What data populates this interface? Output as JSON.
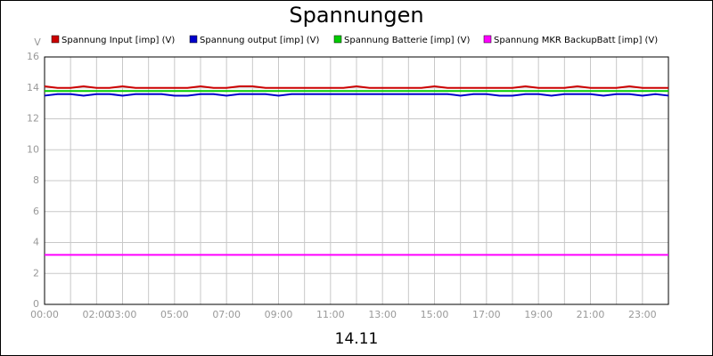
{
  "chart_data": {
    "type": "line",
    "title": "Spannungen",
    "ylabel": "V",
    "xlabel": "14.11",
    "x": [
      0,
      0.5,
      1,
      1.5,
      2,
      2.5,
      3,
      3.5,
      4,
      4.5,
      5,
      5.5,
      6,
      6.5,
      7,
      7.5,
      8,
      8.5,
      9,
      9.5,
      10,
      10.5,
      11,
      11.5,
      12,
      12.5,
      13,
      13.5,
      14,
      14.5,
      15,
      15.5,
      16,
      16.5,
      17,
      17.5,
      18,
      18.5,
      19,
      19.5,
      20,
      20.5,
      21,
      21.5,
      22,
      22.5,
      23,
      23.5,
      24
    ],
    "series": [
      {
        "name": "Spannung Input [imp] (V)",
        "color": "#cc0000",
        "values": [
          14.1,
          14.0,
          14.0,
          14.1,
          14.0,
          14.0,
          14.1,
          14.0,
          14.0,
          14.0,
          14.0,
          14.0,
          14.1,
          14.0,
          14.0,
          14.1,
          14.1,
          14.0,
          14.0,
          14.0,
          14.0,
          14.0,
          14.0,
          14.0,
          14.1,
          14.0,
          14.0,
          14.0,
          14.0,
          14.0,
          14.1,
          14.0,
          14.0,
          14.0,
          14.0,
          14.0,
          14.0,
          14.1,
          14.0,
          14.0,
          14.0,
          14.1,
          14.0,
          14.0,
          14.0,
          14.1,
          14.0,
          14.0,
          14.0
        ]
      },
      {
        "name": "Spannung output [imp] (V)",
        "color": "#0000cc",
        "values": [
          13.5,
          13.6,
          13.6,
          13.5,
          13.6,
          13.6,
          13.5,
          13.6,
          13.6,
          13.6,
          13.5,
          13.5,
          13.6,
          13.6,
          13.5,
          13.6,
          13.6,
          13.6,
          13.5,
          13.6,
          13.6,
          13.6,
          13.6,
          13.6,
          13.6,
          13.6,
          13.6,
          13.6,
          13.6,
          13.6,
          13.6,
          13.6,
          13.5,
          13.6,
          13.6,
          13.5,
          13.5,
          13.6,
          13.6,
          13.5,
          13.6,
          13.6,
          13.6,
          13.5,
          13.6,
          13.6,
          13.5,
          13.6,
          13.5
        ]
      },
      {
        "name": "Spannung Batterie [imp] (V)",
        "color": "#00cc00",
        "values": [
          13.8,
          13.8,
          13.8,
          13.8,
          13.8,
          13.8,
          13.8,
          13.8,
          13.8,
          13.8,
          13.8,
          13.8,
          13.8,
          13.8,
          13.8,
          13.8,
          13.8,
          13.8,
          13.8,
          13.8,
          13.8,
          13.8,
          13.8,
          13.8,
          13.8,
          13.8,
          13.8,
          13.8,
          13.8,
          13.8,
          13.8,
          13.8,
          13.8,
          13.8,
          13.8,
          13.8,
          13.8,
          13.8,
          13.8,
          13.8,
          13.8,
          13.8,
          13.8,
          13.8,
          13.8,
          13.8,
          13.8,
          13.8,
          13.8
        ]
      },
      {
        "name": "Spannung MKR BackupBatt [imp] (V)",
        "color": "#ff00ff",
        "values": [
          3.2,
          3.2,
          3.2,
          3.2,
          3.2,
          3.2,
          3.2,
          3.2,
          3.2,
          3.2,
          3.2,
          3.2,
          3.2,
          3.2,
          3.2,
          3.2,
          3.2,
          3.2,
          3.2,
          3.2,
          3.2,
          3.2,
          3.2,
          3.2,
          3.2,
          3.2,
          3.2,
          3.2,
          3.2,
          3.2,
          3.2,
          3.2,
          3.2,
          3.2,
          3.2,
          3.2,
          3.2,
          3.2,
          3.2,
          3.2,
          3.2,
          3.2,
          3.2,
          3.2,
          3.2,
          3.2,
          3.2,
          3.2,
          3.2
        ]
      }
    ],
    "xlim": [
      0,
      24
    ],
    "ylim": [
      0,
      16
    ],
    "yticks": [
      0,
      2,
      4,
      6,
      8,
      10,
      12,
      14,
      16
    ],
    "xticks": [
      {
        "value": 0,
        "label": "00:00"
      },
      {
        "value": 1,
        "label": null
      },
      {
        "value": 2,
        "label": "02:00"
      },
      {
        "value": 3,
        "label": "03:00"
      },
      {
        "value": 4,
        "label": null
      },
      {
        "value": 5,
        "label": "05:00"
      },
      {
        "value": 6,
        "label": null
      },
      {
        "value": 7,
        "label": "07:00"
      },
      {
        "value": 8,
        "label": null
      },
      {
        "value": 9,
        "label": "09:00"
      },
      {
        "value": 10,
        "label": null
      },
      {
        "value": 11,
        "label": "11:00"
      },
      {
        "value": 12,
        "label": null
      },
      {
        "value": 13,
        "label": "13:00"
      },
      {
        "value": 14,
        "label": null
      },
      {
        "value": 15,
        "label": "15:00"
      },
      {
        "value": 16,
        "label": null
      },
      {
        "value": 17,
        "label": "17:00"
      },
      {
        "value": 18,
        "label": null
      },
      {
        "value": 19,
        "label": "19:00"
      },
      {
        "value": 20,
        "label": null
      },
      {
        "value": 21,
        "label": "21:00"
      },
      {
        "value": 22,
        "label": null
      },
      {
        "value": 23,
        "label": "23:00"
      },
      {
        "value": 24,
        "label": null
      }
    ],
    "grid": true
  }
}
